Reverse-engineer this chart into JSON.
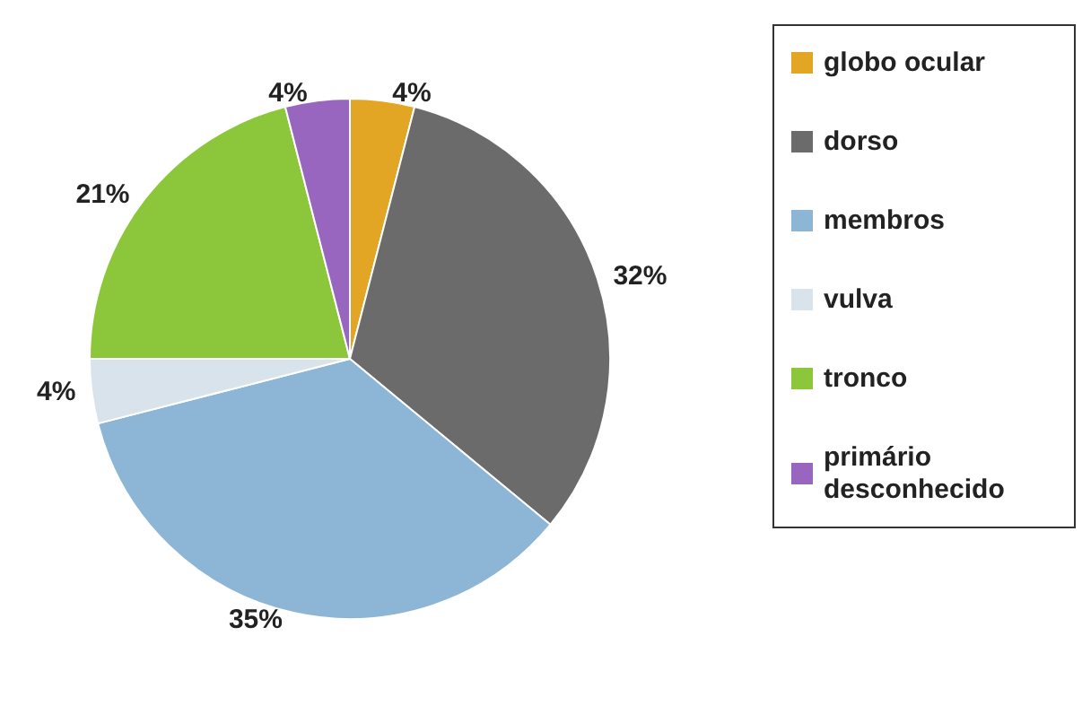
{
  "chart_data": {
    "type": "pie",
    "categories": [
      "globo ocular",
      "dorso",
      "membros",
      "vulva",
      "tronco",
      "primário desconhecido"
    ],
    "values": [
      4,
      32,
      35,
      4,
      21,
      4
    ],
    "value_labels": [
      "4%",
      "32%",
      "35%",
      "4%",
      "21%",
      "4%"
    ],
    "colors": [
      "#e2a624",
      "#6b6b6b",
      "#8db6d6",
      "#d9e3ec",
      "#8cc63a",
      "#9866bf"
    ],
    "legend": "right"
  }
}
